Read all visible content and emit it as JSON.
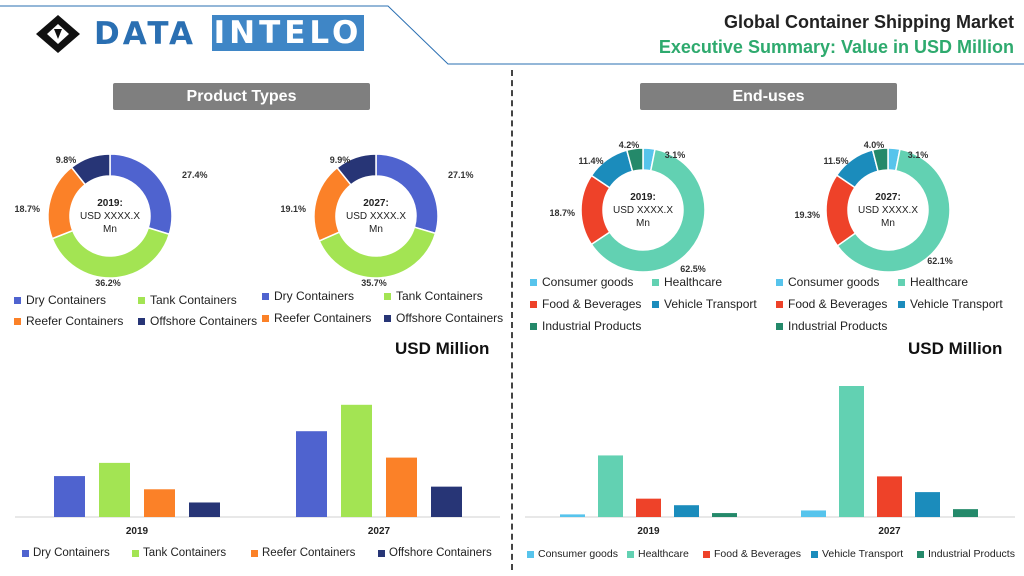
{
  "header": {
    "logo_part1": "DATA",
    "logo_part2": "INTELO",
    "title": "Global Container Shipping Market",
    "subtitle": "Executive Summary: Value in USD Million"
  },
  "sections": {
    "left_title": "Product Types",
    "right_title": "End-uses"
  },
  "usd_label_left": "USD Million",
  "usd_label_right": "USD Million",
  "colors": {
    "dry": "#4f63cf",
    "tank": "#a3e453",
    "reefer": "#fb8128",
    "offshore": "#273576",
    "consumer": "#57c4ec",
    "healthcare": "#62d1b2",
    "food": "#ee4229",
    "vehicle": "#1b8cbc",
    "industrial": "#24896a",
    "title_green": "#2eaa6e",
    "pill_gray": "#7f7f7f"
  },
  "chart_data": [
    {
      "type": "pie",
      "style": "donut",
      "center_label": [
        "2019:",
        "USD XXXX.X",
        "Mn"
      ],
      "categories": [
        "Dry Containers",
        "Tank Containers",
        "Reefer Containers",
        "Offshore Containers"
      ],
      "values": [
        27.4,
        36.2,
        18.7,
        9.8
      ],
      "value_labels": [
        "27.4%",
        "36.2%",
        "18.7%",
        "9.8%"
      ],
      "legend": "bottom"
    },
    {
      "type": "pie",
      "style": "donut",
      "center_label": [
        "2027:",
        "USD XXXX.X",
        "Mn"
      ],
      "categories": [
        "Dry Containers",
        "Tank Containers",
        "Reefer Containers",
        "Offshore Containers"
      ],
      "values": [
        27.1,
        35.7,
        19.1,
        9.9
      ],
      "value_labels": [
        "27.1%",
        "35.7%",
        "19.1%",
        "9.9%"
      ],
      "legend": "bottom"
    },
    {
      "type": "pie",
      "style": "donut",
      "center_label": [
        "2019:",
        "USD XXXX.X",
        "Mn"
      ],
      "categories": [
        "Consumer goods",
        "Healthcare",
        "Food & Beverages",
        "Vehicle Transport",
        "Industrial Products"
      ],
      "values": [
        3.1,
        62.5,
        18.7,
        11.4,
        4.2
      ],
      "value_labels": [
        "3.1%",
        "62.5%",
        "18.7%",
        "11.4%",
        "4.2%"
      ],
      "legend": "bottom"
    },
    {
      "type": "pie",
      "style": "donut",
      "center_label": [
        "2027:",
        "USD XXXX.X",
        "Mn"
      ],
      "categories": [
        "Consumer goods",
        "Healthcare",
        "Food & Beverages",
        "Vehicle Transport",
        "Industrial Products"
      ],
      "values": [
        3.1,
        62.1,
        19.3,
        11.5,
        4.0
      ],
      "value_labels": [
        "3.1%",
        "62.1%",
        "19.3%",
        "11.5%",
        "4.0%"
      ],
      "legend": "bottom"
    },
    {
      "type": "bar",
      "categories": [
        "2019",
        "2027"
      ],
      "series": [
        {
          "name": "Dry Containers",
          "values": [
            31,
            65
          ]
        },
        {
          "name": "Tank Containers",
          "values": [
            41,
            85
          ]
        },
        {
          "name": "Reefer Containers",
          "values": [
            21,
            45
          ]
        },
        {
          "name": "Offshore Containers",
          "values": [
            11,
            23
          ]
        }
      ],
      "ylim": [
        0,
        100
      ],
      "grid": false,
      "legend": "bottom"
    },
    {
      "type": "bar",
      "categories": [
        "2019",
        "2027"
      ],
      "series": [
        {
          "name": "Consumer goods",
          "values": [
            2,
            5
          ]
        },
        {
          "name": "Healthcare",
          "values": [
            47,
            100
          ]
        },
        {
          "name": "Food & Beverages",
          "values": [
            14,
            31
          ]
        },
        {
          "name": "Vehicle Transport",
          "values": [
            9,
            19
          ]
        },
        {
          "name": "Industrial Products",
          "values": [
            3,
            6
          ]
        }
      ],
      "ylim": [
        0,
        100
      ],
      "grid": false,
      "legend": "bottom"
    }
  ]
}
